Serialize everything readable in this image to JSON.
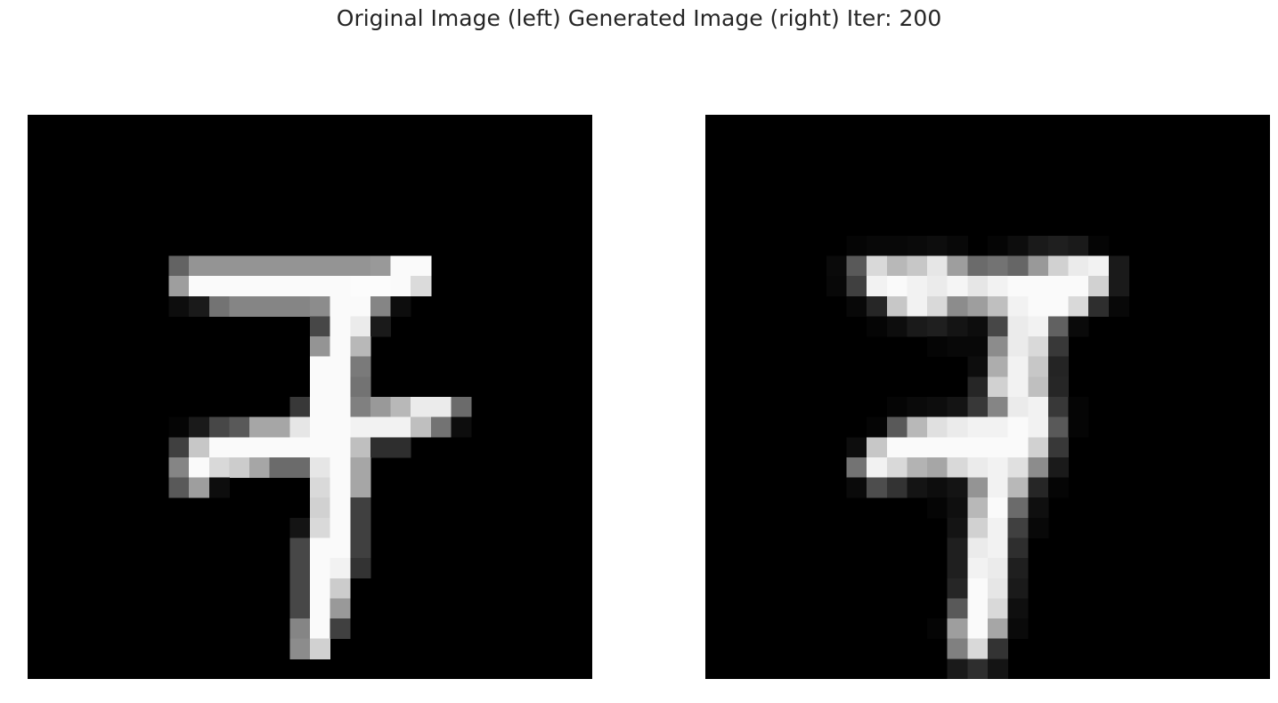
{
  "figure": {
    "title": "Original Image (left) Generated Image (right) Iter: 200"
  },
  "images": {
    "grid_size": 28,
    "colormap": "gray",
    "left": {
      "name": "original-image",
      "rows": {
        "7": [
          [
            7,
            0.39
          ],
          [
            8,
            0.58
          ],
          [
            9,
            0.58
          ],
          [
            10,
            0.58
          ],
          [
            11,
            0.58
          ],
          [
            12,
            0.58
          ],
          [
            13,
            0.58
          ],
          [
            14,
            0.58
          ],
          [
            15,
            0.58
          ],
          [
            16,
            0.58
          ],
          [
            17,
            0.6
          ],
          [
            18,
            0.98
          ],
          [
            19,
            0.98
          ]
        ],
        "8": [
          [
            7,
            0.62
          ],
          [
            8,
            0.98
          ],
          [
            9,
            0.98
          ],
          [
            10,
            0.98
          ],
          [
            11,
            0.98
          ],
          [
            12,
            0.98
          ],
          [
            13,
            0.98
          ],
          [
            14,
            0.98
          ],
          [
            15,
            0.98
          ],
          [
            16,
            0.99
          ],
          [
            17,
            0.99
          ],
          [
            18,
            0.98
          ],
          [
            19,
            0.86
          ]
        ],
        "9": [
          [
            7,
            0.05
          ],
          [
            8,
            0.1
          ],
          [
            9,
            0.45
          ],
          [
            10,
            0.52
          ],
          [
            11,
            0.52
          ],
          [
            12,
            0.52
          ],
          [
            13,
            0.52
          ],
          [
            14,
            0.55
          ],
          [
            15,
            0.98
          ],
          [
            16,
            0.98
          ],
          [
            17,
            0.52
          ],
          [
            18,
            0.05
          ]
        ],
        "10": [
          [
            14,
            0.28
          ],
          [
            15,
            0.98
          ],
          [
            16,
            0.92
          ],
          [
            17,
            0.1
          ]
        ],
        "11": [
          [
            14,
            0.58
          ],
          [
            15,
            0.98
          ],
          [
            16,
            0.72
          ]
        ],
        "12": [
          [
            14,
            0.98
          ],
          [
            15,
            0.98
          ],
          [
            16,
            0.48
          ]
        ],
        "13": [
          [
            14,
            0.98
          ],
          [
            15,
            0.98
          ],
          [
            16,
            0.45
          ]
        ],
        "14": [
          [
            13,
            0.22
          ],
          [
            14,
            0.98
          ],
          [
            15,
            0.98
          ],
          [
            16,
            0.5
          ],
          [
            17,
            0.6
          ],
          [
            18,
            0.72
          ],
          [
            19,
            0.92
          ],
          [
            20,
            0.92
          ],
          [
            21,
            0.42
          ]
        ],
        "15": [
          [
            7,
            0.02
          ],
          [
            8,
            0.1
          ],
          [
            9,
            0.28
          ],
          [
            10,
            0.35
          ],
          [
            11,
            0.65
          ],
          [
            12,
            0.65
          ],
          [
            13,
            0.9
          ],
          [
            14,
            0.98
          ],
          [
            15,
            0.98
          ],
          [
            16,
            0.95
          ],
          [
            17,
            0.95
          ],
          [
            18,
            0.95
          ],
          [
            19,
            0.75
          ],
          [
            20,
            0.45
          ],
          [
            21,
            0.05
          ]
        ],
        "16": [
          [
            7,
            0.25
          ],
          [
            8,
            0.78
          ],
          [
            9,
            0.98
          ],
          [
            10,
            0.98
          ],
          [
            11,
            0.98
          ],
          [
            12,
            0.98
          ],
          [
            13,
            0.98
          ],
          [
            14,
            0.98
          ],
          [
            15,
            0.98
          ],
          [
            16,
            0.75
          ],
          [
            17,
            0.18
          ],
          [
            18,
            0.18
          ]
        ],
        "17": [
          [
            7,
            0.52
          ],
          [
            8,
            0.98
          ],
          [
            9,
            0.85
          ],
          [
            10,
            0.8
          ],
          [
            11,
            0.65
          ],
          [
            12,
            0.42
          ],
          [
            13,
            0.42
          ],
          [
            14,
            0.9
          ],
          [
            15,
            0.98
          ],
          [
            16,
            0.65
          ]
        ],
        "18": [
          [
            7,
            0.35
          ],
          [
            8,
            0.62
          ],
          [
            9,
            0.05
          ],
          [
            14,
            0.85
          ],
          [
            15,
            0.98
          ],
          [
            16,
            0.65
          ]
        ],
        "19": [
          [
            14,
            0.82
          ],
          [
            15,
            0.98
          ],
          [
            16,
            0.25
          ]
        ],
        "20": [
          [
            13,
            0.08
          ],
          [
            14,
            0.85
          ],
          [
            15,
            0.98
          ],
          [
            16,
            0.25
          ]
        ],
        "21": [
          [
            13,
            0.28
          ],
          [
            14,
            0.98
          ],
          [
            15,
            0.98
          ],
          [
            16,
            0.25
          ]
        ],
        "22": [
          [
            13,
            0.28
          ],
          [
            14,
            0.98
          ],
          [
            15,
            0.95
          ],
          [
            16,
            0.2
          ]
        ],
        "23": [
          [
            13,
            0.28
          ],
          [
            14,
            0.98
          ],
          [
            15,
            0.8
          ]
        ],
        "24": [
          [
            13,
            0.28
          ],
          [
            14,
            0.98
          ],
          [
            15,
            0.6
          ]
        ],
        "25": [
          [
            13,
            0.52
          ],
          [
            14,
            0.98
          ],
          [
            15,
            0.25
          ]
        ],
        "26": [
          [
            13,
            0.55
          ],
          [
            14,
            0.82
          ]
        ]
      }
    },
    "right": {
      "name": "generated-image",
      "rows": {
        "6": [
          [
            7,
            0.02
          ],
          [
            8,
            0.03
          ],
          [
            9,
            0.03
          ],
          [
            10,
            0.04
          ],
          [
            11,
            0.05
          ],
          [
            12,
            0.03
          ],
          [
            14,
            0.02
          ],
          [
            15,
            0.05
          ],
          [
            16,
            0.1
          ],
          [
            17,
            0.12
          ],
          [
            18,
            0.1
          ],
          [
            19,
            0.02
          ]
        ],
        "7": [
          [
            6,
            0.04
          ],
          [
            7,
            0.35
          ],
          [
            8,
            0.85
          ],
          [
            9,
            0.72
          ],
          [
            10,
            0.78
          ],
          [
            11,
            0.9
          ],
          [
            12,
            0.62
          ],
          [
            13,
            0.42
          ],
          [
            14,
            0.45
          ],
          [
            15,
            0.4
          ],
          [
            16,
            0.6
          ],
          [
            17,
            0.82
          ],
          [
            18,
            0.92
          ],
          [
            19,
            0.95
          ],
          [
            20,
            0.1
          ]
        ],
        "8": [
          [
            6,
            0.03
          ],
          [
            7,
            0.25
          ],
          [
            8,
            0.95
          ],
          [
            9,
            0.98
          ],
          [
            10,
            0.95
          ],
          [
            11,
            0.92
          ],
          [
            12,
            0.96
          ],
          [
            13,
            0.9
          ],
          [
            14,
            0.95
          ],
          [
            15,
            0.98
          ],
          [
            16,
            0.98
          ],
          [
            17,
            0.98
          ],
          [
            18,
            0.98
          ],
          [
            19,
            0.82
          ],
          [
            20,
            0.1
          ]
        ],
        "9": [
          [
            7,
            0.03
          ],
          [
            8,
            0.15
          ],
          [
            9,
            0.78
          ],
          [
            10,
            0.95
          ],
          [
            11,
            0.85
          ],
          [
            12,
            0.55
          ],
          [
            13,
            0.62
          ],
          [
            14,
            0.75
          ],
          [
            15,
            0.95
          ],
          [
            16,
            0.98
          ],
          [
            17,
            0.98
          ],
          [
            18,
            0.85
          ],
          [
            19,
            0.18
          ],
          [
            20,
            0.03
          ]
        ],
        "10": [
          [
            8,
            0.02
          ],
          [
            9,
            0.05
          ],
          [
            10,
            0.1
          ],
          [
            11,
            0.12
          ],
          [
            12,
            0.08
          ],
          [
            13,
            0.05
          ],
          [
            14,
            0.28
          ],
          [
            15,
            0.92
          ],
          [
            16,
            0.95
          ],
          [
            17,
            0.38
          ],
          [
            18,
            0.04
          ]
        ],
        "11": [
          [
            11,
            0.02
          ],
          [
            12,
            0.03
          ],
          [
            13,
            0.03
          ],
          [
            14,
            0.55
          ],
          [
            15,
            0.92
          ],
          [
            16,
            0.85
          ],
          [
            17,
            0.22
          ]
        ],
        "12": [
          [
            13,
            0.05
          ],
          [
            14,
            0.68
          ],
          [
            15,
            0.95
          ],
          [
            16,
            0.78
          ],
          [
            17,
            0.14
          ]
        ],
        "13": [
          [
            13,
            0.15
          ],
          [
            14,
            0.82
          ],
          [
            15,
            0.95
          ],
          [
            16,
            0.75
          ],
          [
            17,
            0.15
          ]
        ],
        "14": [
          [
            9,
            0.02
          ],
          [
            10,
            0.04
          ],
          [
            11,
            0.05
          ],
          [
            12,
            0.08
          ],
          [
            13,
            0.22
          ],
          [
            14,
            0.52
          ],
          [
            15,
            0.92
          ],
          [
            16,
            0.95
          ],
          [
            17,
            0.22
          ],
          [
            18,
            0.02
          ]
        ],
        "15": [
          [
            8,
            0.02
          ],
          [
            9,
            0.35
          ],
          [
            10,
            0.72
          ],
          [
            11,
            0.88
          ],
          [
            12,
            0.92
          ],
          [
            13,
            0.95
          ],
          [
            14,
            0.95
          ],
          [
            15,
            0.98
          ],
          [
            16,
            0.95
          ],
          [
            17,
            0.35
          ],
          [
            18,
            0.02
          ]
        ],
        "16": [
          [
            7,
            0.05
          ],
          [
            8,
            0.78
          ],
          [
            9,
            0.98
          ],
          [
            10,
            0.98
          ],
          [
            11,
            0.98
          ],
          [
            12,
            0.98
          ],
          [
            13,
            0.98
          ],
          [
            14,
            0.98
          ],
          [
            15,
            0.98
          ],
          [
            16,
            0.82
          ],
          [
            17,
            0.22
          ]
        ],
        "17": [
          [
            7,
            0.45
          ],
          [
            8,
            0.95
          ],
          [
            9,
            0.85
          ],
          [
            10,
            0.7
          ],
          [
            11,
            0.65
          ],
          [
            12,
            0.85
          ],
          [
            13,
            0.92
          ],
          [
            14,
            0.95
          ],
          [
            15,
            0.88
          ],
          [
            16,
            0.55
          ],
          [
            17,
            0.1
          ]
        ],
        "18": [
          [
            7,
            0.04
          ],
          [
            8,
            0.3
          ],
          [
            9,
            0.2
          ],
          [
            10,
            0.08
          ],
          [
            11,
            0.05
          ],
          [
            12,
            0.08
          ],
          [
            13,
            0.58
          ],
          [
            14,
            0.95
          ],
          [
            15,
            0.72
          ],
          [
            16,
            0.15
          ],
          [
            17,
            0.02
          ]
        ],
        "19": [
          [
            11,
            0.02
          ],
          [
            12,
            0.06
          ],
          [
            13,
            0.72
          ],
          [
            14,
            0.98
          ],
          [
            15,
            0.42
          ],
          [
            16,
            0.06
          ]
        ],
        "20": [
          [
            12,
            0.08
          ],
          [
            13,
            0.82
          ],
          [
            14,
            0.95
          ],
          [
            15,
            0.25
          ],
          [
            16,
            0.03
          ]
        ],
        "21": [
          [
            12,
            0.12
          ],
          [
            13,
            0.92
          ],
          [
            14,
            0.95
          ],
          [
            15,
            0.18
          ]
        ],
        "22": [
          [
            12,
            0.12
          ],
          [
            13,
            0.95
          ],
          [
            14,
            0.92
          ],
          [
            15,
            0.12
          ]
        ],
        "23": [
          [
            12,
            0.15
          ],
          [
            13,
            0.98
          ],
          [
            14,
            0.9
          ],
          [
            15,
            0.1
          ]
        ],
        "24": [
          [
            12,
            0.35
          ],
          [
            13,
            0.98
          ],
          [
            14,
            0.85
          ],
          [
            15,
            0.06
          ]
        ],
        "25": [
          [
            11,
            0.02
          ],
          [
            12,
            0.62
          ],
          [
            13,
            0.98
          ],
          [
            14,
            0.65
          ],
          [
            15,
            0.04
          ]
        ],
        "26": [
          [
            12,
            0.5
          ],
          [
            13,
            0.85
          ],
          [
            14,
            0.2
          ]
        ],
        "27": [
          [
            12,
            0.1
          ],
          [
            13,
            0.18
          ],
          [
            14,
            0.08
          ]
        ]
      }
    }
  }
}
